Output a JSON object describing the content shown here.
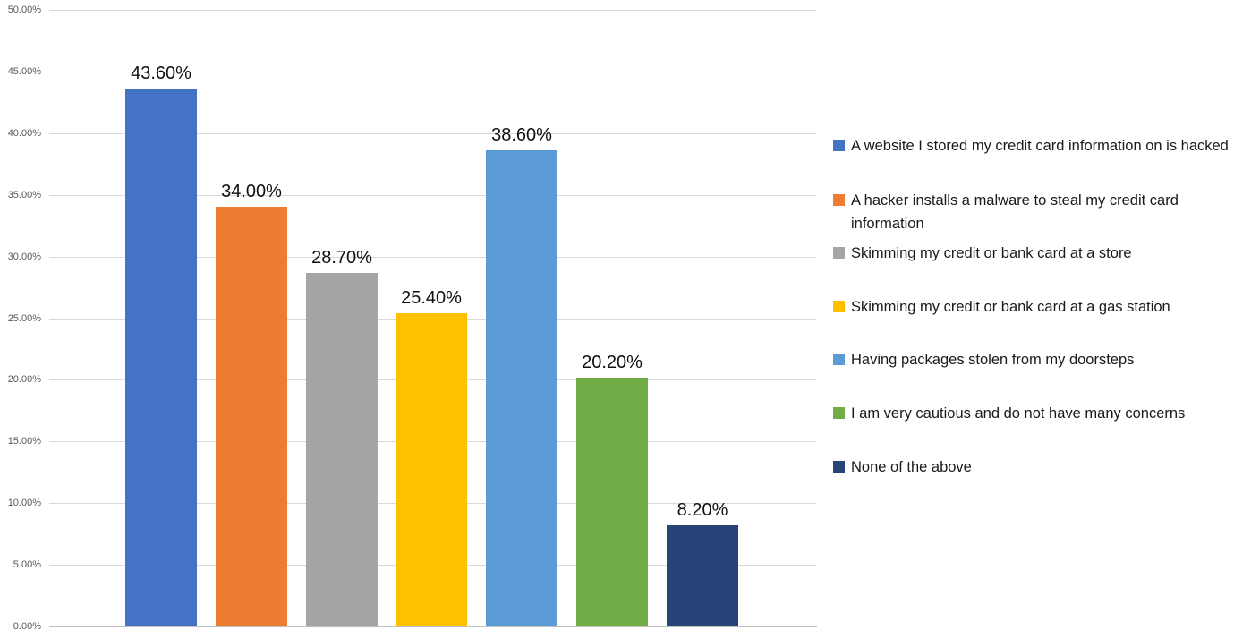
{
  "chart_data": {
    "type": "bar",
    "title": "",
    "xlabel": "",
    "ylabel": "",
    "ylim": [
      0,
      50
    ],
    "grid": true,
    "legend_position": "right",
    "categories": [
      "A website I stored my credit card information on is hacked",
      "A hacker installs a malware to steal my credit card information",
      "Skimming my credit or bank card at a store",
      "Skimming my credit or bank card at a gas station",
      "Having packages stolen from my doorsteps",
      "I am very cautious and do not have many concerns",
      "None of the above"
    ],
    "values": [
      43.6,
      34.0,
      28.7,
      25.4,
      38.6,
      20.2,
      8.2
    ],
    "data_labels": [
      "43.60%",
      "34.00%",
      "28.70%",
      "25.40%",
      "38.60%",
      "20.20%",
      "8.20%"
    ],
    "colors": [
      "#4472c4",
      "#ed7d31",
      "#a5a5a5",
      "#ffc000",
      "#5b9bd5",
      "#70ad47",
      "#264478"
    ],
    "ytick_values": [
      0,
      5,
      10,
      15,
      20,
      25,
      30,
      35,
      40,
      45,
      50
    ],
    "ytick_labels": [
      "0.00%",
      "5.00%",
      "10.00%",
      "15.00%",
      "20.00%",
      "25.00%",
      "30.00%",
      "35.00%",
      "40.00%",
      "45.00%",
      "50.00%"
    ]
  }
}
